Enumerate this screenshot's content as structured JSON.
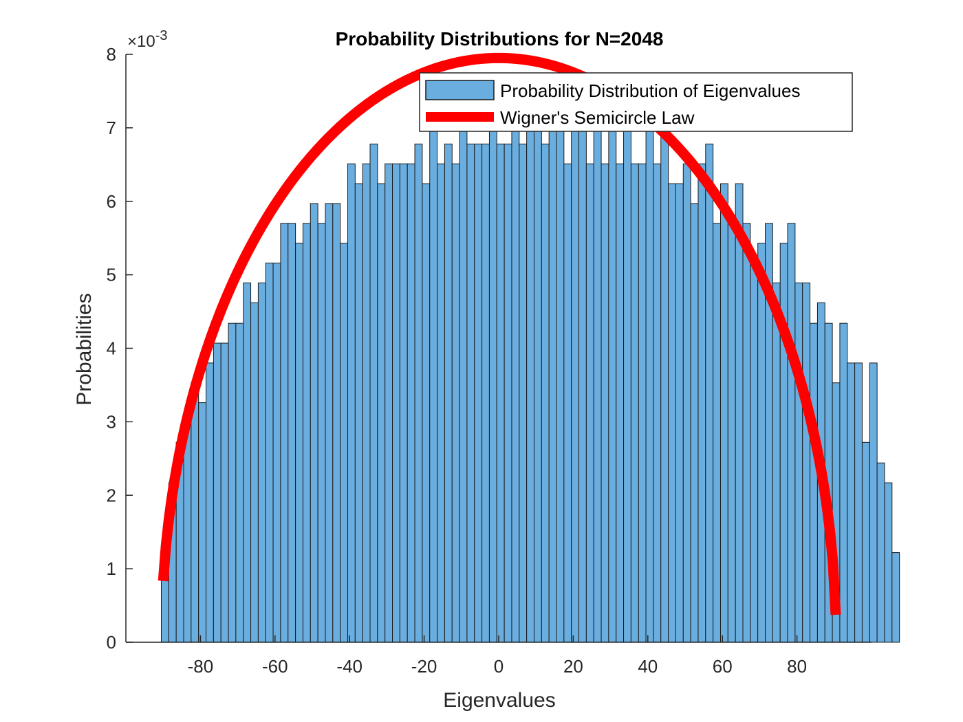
{
  "chart_data": {
    "type": "bar",
    "title": "Probability Distributions for N=2048",
    "xlabel": "Eigenvalues",
    "ylabel": "Probabilities",
    "y_exponent_label": "×10",
    "y_exponent_power": "-3",
    "xlim": [
      -100,
      100
    ],
    "ylim": [
      0,
      8
    ],
    "x_ticks": [
      -80,
      -60,
      -40,
      -20,
      0,
      20,
      40,
      60,
      80
    ],
    "y_ticks": [
      0,
      1,
      2,
      3,
      4,
      5,
      6,
      7,
      8
    ],
    "x_tick_labels": [
      "-80",
      "-60",
      "-40",
      "-20",
      "0",
      "20",
      "40",
      "60",
      "80"
    ],
    "y_tick_labels": [
      "0",
      "1",
      "2",
      "3",
      "4",
      "5",
      "6",
      "7",
      "8"
    ],
    "grid": false,
    "legend_position": "top-right",
    "histogram": {
      "name": "Probability Distribution of Eigenvalues",
      "color": "#6aaee0",
      "edge_color": "#1a1a1a",
      "bin_start": -90.5,
      "bin_width": 2.0,
      "values": [
        0.95,
        2.17,
        2.72,
        2.99,
        3.53,
        3.26,
        3.8,
        4.07,
        4.07,
        4.34,
        4.34,
        4.89,
        4.62,
        4.89,
        5.16,
        5.16,
        5.7,
        5.7,
        5.43,
        5.7,
        5.97,
        5.7,
        5.97,
        5.97,
        5.43,
        6.51,
        6.24,
        6.51,
        6.78,
        6.24,
        6.51,
        6.51,
        6.51,
        6.51,
        6.78,
        6.24,
        7.33,
        6.51,
        6.78,
        6.51,
        7.1,
        6.78,
        6.78,
        6.78,
        7.1,
        6.78,
        6.78,
        7.1,
        6.78,
        7.06,
        7.06,
        6.78,
        7.06,
        7.06,
        6.51,
        7.06,
        7.06,
        6.51,
        7.06,
        6.51,
        7.06,
        6.51,
        7.06,
        6.51,
        6.51,
        7.06,
        6.51,
        7.06,
        6.24,
        6.24,
        6.51,
        5.97,
        6.51,
        6.78,
        5.7,
        6.24,
        5.7,
        6.24,
        5.7,
        5.16,
        5.43,
        5.7,
        4.89,
        5.43,
        5.7,
        4.89,
        4.89,
        4.34,
        4.62,
        4.34,
        3.53,
        4.34,
        3.8,
        3.8,
        2.72,
        3.8,
        2.44,
        2.17,
        1.22
      ]
    },
    "curve": {
      "name": "Wigner's Semicircle Law",
      "color": "#ff0000",
      "center": 0,
      "radius": 90.5,
      "peak": 7.95,
      "x_start": -90.0,
      "x_end": 90.4
    }
  }
}
